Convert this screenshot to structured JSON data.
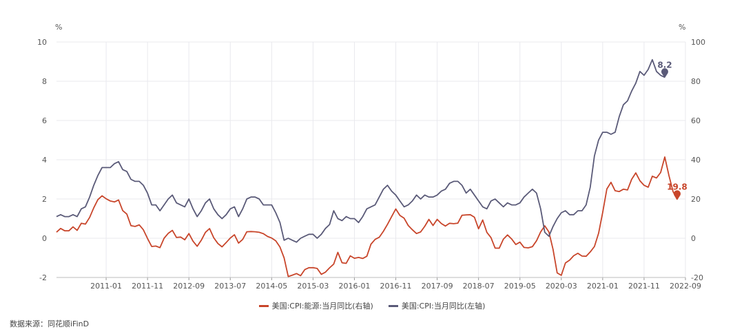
{
  "source": "数据来源：同花顺iFinD",
  "colors": {
    "energy": "#c8452a",
    "cpi": "#5a5a78"
  },
  "chart_data": {
    "type": "line",
    "left_axis": {
      "unit": "%",
      "min": -2,
      "max": 10,
      "ticks": [
        -2,
        0,
        2,
        4,
        6,
        8,
        10
      ]
    },
    "right_axis": {
      "unit": "%",
      "min": -20,
      "max": 100,
      "ticks": [
        -20,
        0,
        20,
        40,
        60,
        80,
        100
      ]
    },
    "x_range": [
      "2010-01",
      "2022-09"
    ],
    "x_ticks": [
      "2011-01",
      "2011-11",
      "2012-09",
      "2013-07",
      "2014-05",
      "2015-03",
      "2016-01",
      "2016-11",
      "2017-09",
      "2018-07",
      "2019-05",
      "2020-03",
      "2021-01",
      "2021-11",
      "2022-09"
    ],
    "grid": true,
    "legend_position": "bottom",
    "series": [
      {
        "name": "美国:CPI:能源:当月同比(右轴)",
        "axis": "right",
        "end_label": "19.8",
        "values": [
          3.1,
          5.0,
          3.8,
          3.8,
          5.8,
          4.0,
          7.6,
          7.2,
          10.6,
          15.5,
          19.7,
          21.6,
          20.1,
          19.0,
          18.5,
          19.5,
          14.1,
          12.3,
          6.4,
          6.0,
          6.8,
          4.3,
          -0.1,
          -4.2,
          -4.0,
          -4.8,
          0.0,
          2.5,
          4.0,
          0.4,
          0.6,
          -0.8,
          2.4,
          -1.5,
          -4.1,
          -1.0,
          3.0,
          4.9,
          0.2,
          -2.7,
          -4.4,
          -2.2,
          0.1,
          1.8,
          -2.5,
          -0.6,
          3.3,
          3.4,
          3.3,
          3.0,
          2.3,
          0.9,
          0.1,
          -1.3,
          -4.5,
          -10.0,
          -19.5,
          -18.8,
          -18.0,
          -19.1,
          -16.0,
          -15.0,
          -15.0,
          -15.4,
          -18.4,
          -17.3,
          -15.1,
          -13.2,
          -7.2,
          -12.5,
          -12.8,
          -9.0,
          -10.2,
          -9.8,
          -10.3,
          -9.2,
          -3.0,
          -0.6,
          0.5,
          3.5,
          7.1,
          11.0,
          14.9,
          11.6,
          10.2,
          6.5,
          4.3,
          2.4,
          3.2,
          6.1,
          9.6,
          6.5,
          9.6,
          7.5,
          6.2,
          7.6,
          7.4,
          7.7,
          11.7,
          11.9,
          12.0,
          10.7,
          4.8,
          9.3,
          3.0,
          0.3,
          -5.0,
          -5.1,
          -0.5,
          1.7,
          -0.4,
          -3.2,
          -2.0,
          -4.7,
          -4.9,
          -4.3,
          -1.3,
          3.2,
          6.3,
          3.2,
          -5.7,
          -17.7,
          -18.9,
          -12.6,
          -11.2,
          -8.9,
          -7.7,
          -9.1,
          -9.2,
          -7.0,
          -4.2,
          2.5,
          13.2,
          25.1,
          28.5,
          24.2,
          23.8,
          25.0,
          24.6,
          30.0,
          33.3,
          29.3,
          27.0,
          26.0,
          31.6,
          30.7,
          33.5,
          41.4,
          32.0,
          23.8,
          19.8
        ]
      },
      {
        "name": "美国:CPI:当月同比(左轴)",
        "axis": "left",
        "end_label": "8.2",
        "values": [
          1.1,
          1.2,
          1.1,
          1.1,
          1.2,
          1.1,
          1.5,
          1.6,
          2.1,
          2.7,
          3.2,
          3.6,
          3.6,
          3.6,
          3.8,
          3.9,
          3.5,
          3.4,
          3.0,
          2.9,
          2.9,
          2.7,
          2.3,
          1.7,
          1.7,
          1.4,
          1.7,
          2.0,
          2.2,
          1.8,
          1.7,
          1.6,
          2.0,
          1.5,
          1.1,
          1.4,
          1.8,
          2.0,
          1.5,
          1.2,
          1.0,
          1.2,
          1.5,
          1.6,
          1.1,
          1.5,
          2.0,
          2.1,
          2.1,
          2.0,
          1.7,
          1.7,
          1.7,
          1.3,
          0.8,
          -0.1,
          0.0,
          -0.1,
          -0.2,
          0.0,
          0.1,
          0.2,
          0.2,
          0.0,
          0.2,
          0.5,
          0.7,
          1.4,
          1.0,
          0.9,
          1.1,
          1.0,
          1.0,
          0.8,
          1.1,
          1.5,
          1.6,
          1.7,
          2.1,
          2.5,
          2.7,
          2.4,
          2.2,
          1.9,
          1.6,
          1.7,
          1.9,
          2.2,
          2.0,
          2.2,
          2.1,
          2.1,
          2.2,
          2.4,
          2.5,
          2.8,
          2.9,
          2.9,
          2.7,
          2.3,
          2.5,
          2.2,
          1.9,
          1.6,
          1.5,
          1.9,
          2.0,
          1.8,
          1.6,
          1.8,
          1.7,
          1.7,
          1.8,
          2.1,
          2.3,
          2.5,
          2.3,
          1.5,
          0.3,
          0.1,
          0.6,
          1.0,
          1.3,
          1.4,
          1.2,
          1.2,
          1.4,
          1.4,
          1.7,
          2.6,
          4.2,
          5.0,
          5.4,
          5.4,
          5.3,
          5.4,
          6.2,
          6.8,
          7.0,
          7.5,
          7.9,
          8.5,
          8.3,
          8.6,
          9.1,
          8.5,
          8.3,
          8.2
        ]
      }
    ]
  }
}
